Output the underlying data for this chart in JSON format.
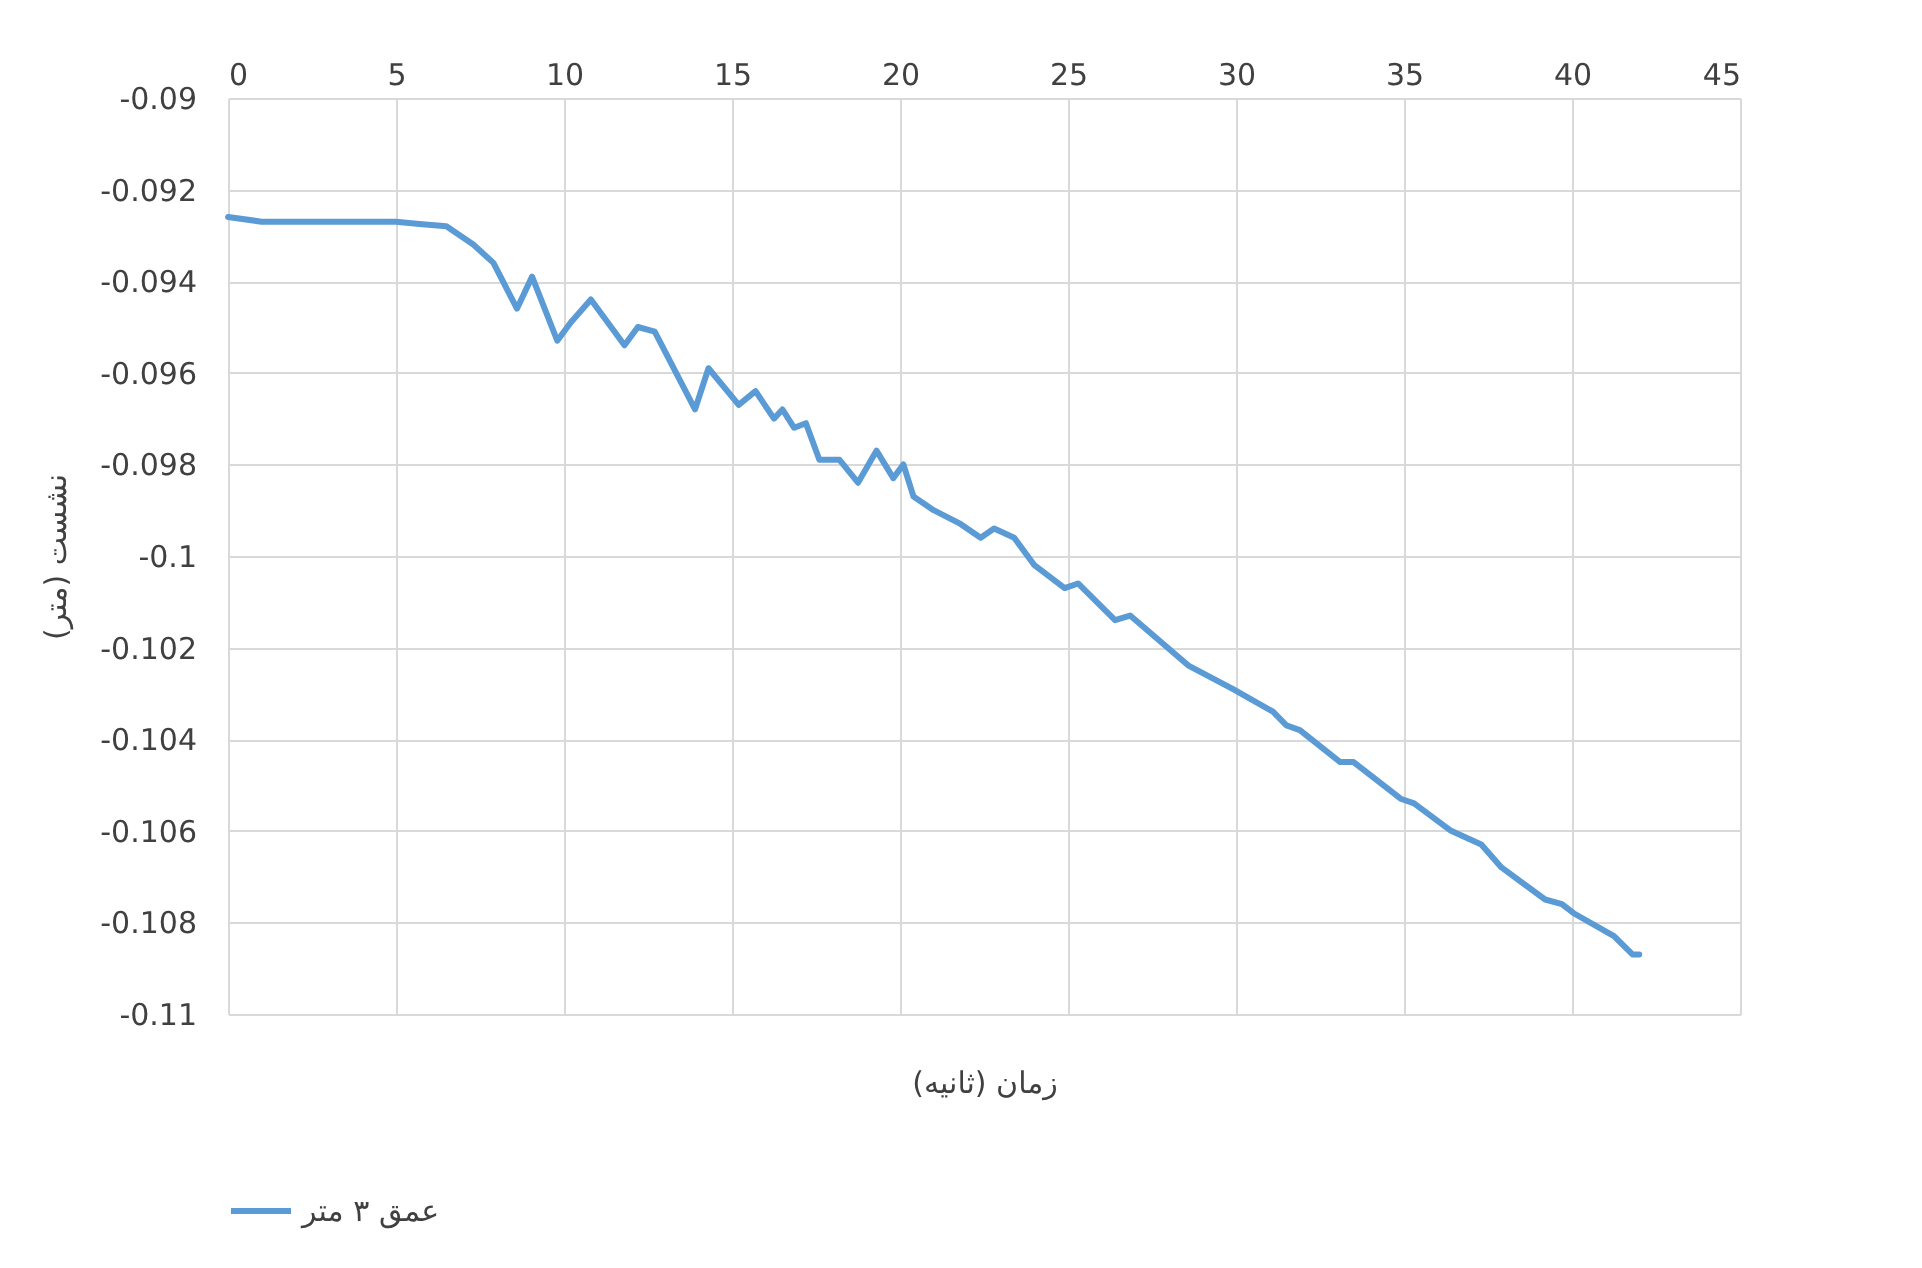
{
  "chart_data": {
    "type": "line",
    "xlabel": "زمان (ثانیه)",
    "ylabel": "نشست (متر)",
    "xlim": [
      0,
      45
    ],
    "xticks": [
      0,
      5,
      10,
      15,
      20,
      25,
      30,
      35,
      40,
      45
    ],
    "ylim": [
      -0.11,
      -0.09
    ],
    "yticks": [
      -0.11,
      -0.108,
      -0.106,
      -0.104,
      -0.102,
      -0.1,
      -0.098,
      -0.096,
      -0.094,
      -0.092,
      -0.09
    ],
    "grid": true,
    "legend": "bottom",
    "line_style": "solid",
    "marker": "none",
    "series": [
      {
        "name": "عمق ۳ متر",
        "color": "#5b9bd5",
        "x": [
          0,
          1,
          2,
          3,
          4,
          5,
          5.7,
          6.5,
          7.3,
          7.9,
          8.6,
          9.05,
          9.8,
          10.2,
          10.8,
          11.8,
          12.2,
          12.7,
          13.9,
          14.3,
          15.2,
          15.7,
          16.25,
          16.5,
          16.85,
          17.2,
          17.6,
          18.2,
          18.75,
          19.3,
          19.8,
          20.1,
          20.4,
          21,
          21.8,
          22.4,
          22.8,
          23.4,
          24,
          24.9,
          25.3,
          26.4,
          26.85,
          28.6,
          29.9,
          31.1,
          31.5,
          31.9,
          33.1,
          33.5,
          34.9,
          35.3,
          36.4,
          37.3,
          37.9,
          39.2,
          39.7,
          40.05,
          41.25,
          41.8,
          42
        ],
        "values": [
          -0.0926,
          -0.0927,
          -0.0927,
          -0.0927,
          -0.0927,
          -0.0927,
          -0.09275,
          -0.0928,
          -0.0932,
          -0.0936,
          -0.0946,
          -0.0939,
          -0.0953,
          -0.0949,
          -0.0944,
          -0.0954,
          -0.095,
          -0.0951,
          -0.0968,
          -0.0959,
          -0.0967,
          -0.0964,
          -0.097,
          -0.0968,
          -0.0972,
          -0.0971,
          -0.0979,
          -0.0979,
          -0.0984,
          -0.0977,
          -0.0983,
          -0.098,
          -0.0987,
          -0.099,
          -0.0993,
          -0.0996,
          -0.0994,
          -0.0996,
          -0.1002,
          -0.1007,
          -0.1006,
          -0.1014,
          -0.1013,
          -0.1024,
          -0.1029,
          -0.1034,
          -0.1037,
          -0.1038,
          -0.1045,
          -0.1045,
          -0.1053,
          -0.1054,
          -0.106,
          -0.1063,
          -0.1068,
          -0.1075,
          -0.1076,
          -0.1078,
          -0.1083,
          -0.1087,
          -0.1087
        ]
      }
    ]
  }
}
